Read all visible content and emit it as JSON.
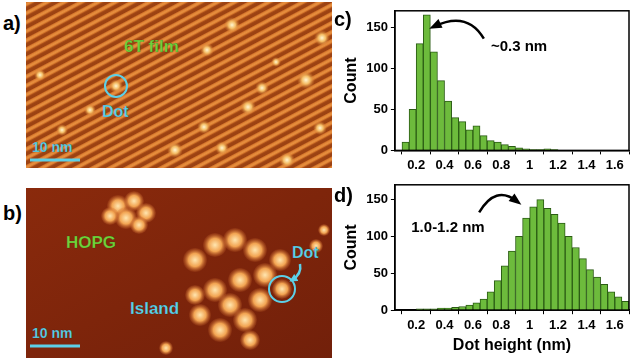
{
  "figure": {
    "panel_a": {
      "label": "a)",
      "surface": "6T film",
      "dot_label": "Dot",
      "scale_bar": "10 nm"
    },
    "panel_b": {
      "label": "b)",
      "surface": "HOPG",
      "dot_label": "Dot",
      "feature": "Island",
      "scale_bar": "10 nm"
    }
  },
  "chart_data": [
    {
      "panel_label": "c)",
      "type": "histogram",
      "bins": [
        0.1,
        0.15,
        0.2,
        0.25,
        0.3,
        0.35,
        0.4,
        0.45,
        0.5,
        0.55,
        0.6,
        0.65,
        0.7,
        0.75,
        0.8,
        0.85,
        0.9,
        0.95,
        1.0,
        1.05,
        1.1,
        1.15,
        1.2
      ],
      "counts": [
        10,
        50,
        130,
        165,
        120,
        85,
        60,
        40,
        35,
        25,
        30,
        18,
        12,
        10,
        7,
        5,
        3,
        2,
        1,
        1,
        2,
        1
      ],
      "color": "#6dbb3c",
      "xlim": [
        0.05,
        1.7
      ],
      "xticks": [
        0.2,
        0.4,
        0.6,
        0.8,
        1.0,
        1.2,
        1.4,
        1.6
      ],
      "ylim": [
        0,
        170
      ],
      "yticks": [
        0,
        50,
        100,
        150
      ],
      "y_label": "Count",
      "annotation": "~0.3 nm",
      "grid": false
    },
    {
      "panel_label": "d)",
      "type": "histogram",
      "bins": [
        0.2,
        0.25,
        0.3,
        0.35,
        0.4,
        0.45,
        0.5,
        0.55,
        0.6,
        0.65,
        0.7,
        0.75,
        0.8,
        0.85,
        0.9,
        0.95,
        1.0,
        1.05,
        1.1,
        1.15,
        1.2,
        1.25,
        1.3,
        1.35,
        1.4,
        1.45,
        1.5,
        1.55,
        1.6,
        1.65,
        1.7
      ],
      "counts": [
        2,
        2,
        2,
        3,
        3,
        4,
        5,
        7,
        10,
        15,
        25,
        40,
        60,
        80,
        100,
        125,
        140,
        150,
        138,
        130,
        118,
        100,
        85,
        70,
        55,
        45,
        35,
        25,
        18,
        12
      ],
      "color": "#6dbb3c",
      "xlim": [
        0.05,
        1.7
      ],
      "xticks": [
        0.2,
        0.4,
        0.6,
        0.8,
        1.0,
        1.2,
        1.4,
        1.6
      ],
      "ylim": [
        0,
        170
      ],
      "yticks": [
        0,
        50,
        100,
        150
      ],
      "y_label": "Count",
      "x_label": "Dot height (nm)",
      "annotation": "1.0-1.2 nm",
      "grid": false
    }
  ]
}
